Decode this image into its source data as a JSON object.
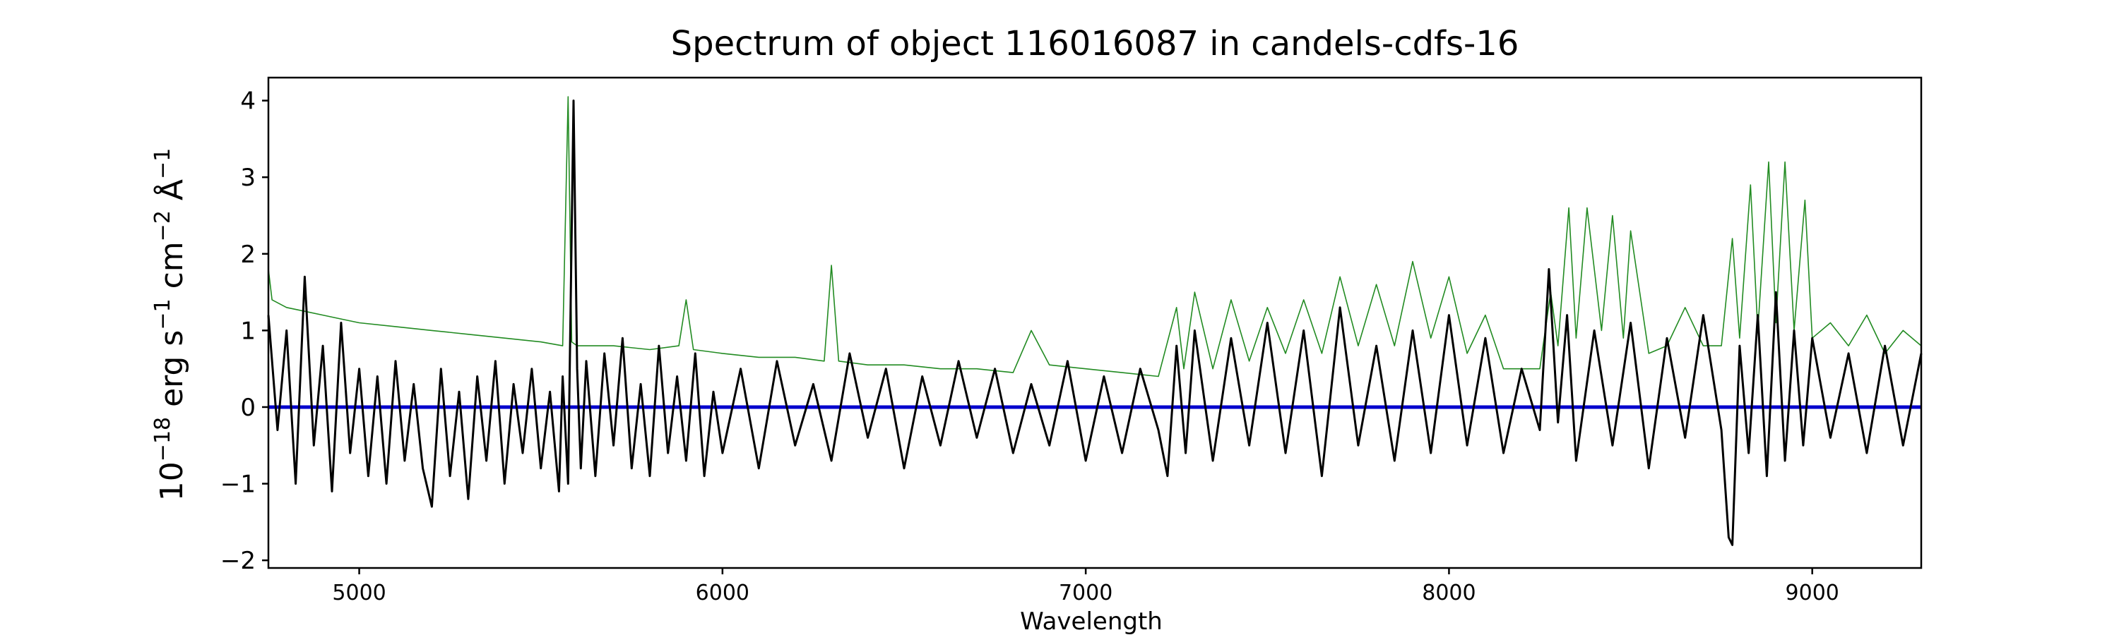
{
  "chart_data": {
    "type": "line",
    "title": "Spectrum of object 116016087 in candels-cdfs-16",
    "xlabel": "Wavelength",
    "ylabel_parts": [
      "10",
      "−18",
      " erg s",
      "−1",
      " cm",
      "−2",
      " Å",
      "−1"
    ],
    "xlim": [
      4750,
      9300
    ],
    "ylim": [
      -2.1,
      4.3
    ],
    "x_ticks": [
      5000,
      6000,
      7000,
      8000,
      9000
    ],
    "y_ticks": [
      -2,
      -1,
      0,
      1,
      2,
      3,
      4
    ],
    "grid": false,
    "colors": {
      "flux": "#000000",
      "model": "#228b22",
      "zero": "#0000cd"
    },
    "series": [
      {
        "role": "flux",
        "x": [
          4750,
          4775,
          4800,
          4825,
          4850,
          4875,
          4900,
          4925,
          4950,
          4975,
          5000,
          5025,
          5050,
          5075,
          5100,
          5125,
          5150,
          5175,
          5200,
          5225,
          5250,
          5275,
          5300,
          5325,
          5350,
          5375,
          5400,
          5425,
          5450,
          5475,
          5500,
          5525,
          5550,
          5560,
          5575,
          5590,
          5600,
          5610,
          5625,
          5650,
          5675,
          5700,
          5725,
          5750,
          5775,
          5800,
          5825,
          5850,
          5875,
          5900,
          5925,
          5950,
          5975,
          6000,
          6050,
          6100,
          6150,
          6200,
          6250,
          6300,
          6350,
          6400,
          6450,
          6500,
          6550,
          6600,
          6650,
          6700,
          6750,
          6800,
          6850,
          6900,
          6950,
          7000,
          7050,
          7100,
          7150,
          7200,
          7225,
          7250,
          7275,
          7300,
          7350,
          7400,
          7450,
          7500,
          7550,
          7600,
          7650,
          7700,
          7750,
          7800,
          7850,
          7900,
          7950,
          8000,
          8050,
          8100,
          8150,
          8200,
          8250,
          8275,
          8300,
          8325,
          8350,
          8400,
          8450,
          8500,
          8550,
          8600,
          8650,
          8700,
          8750,
          8770,
          8780,
          8800,
          8825,
          8850,
          8875,
          8900,
          8925,
          8950,
          8975,
          9000,
          9050,
          9100,
          9150,
          9200,
          9250,
          9300
        ],
        "y": [
          1.2,
          -0.3,
          1.0,
          -1.0,
          1.7,
          -0.5,
          0.8,
          -1.1,
          1.1,
          -0.6,
          0.5,
          -0.9,
          0.4,
          -1.0,
          0.6,
          -0.7,
          0.3,
          -0.8,
          -1.3,
          0.5,
          -0.9,
          0.2,
          -1.2,
          0.4,
          -0.7,
          0.6,
          -1.0,
          0.3,
          -0.6,
          0.5,
          -0.8,
          0.2,
          -1.1,
          0.4,
          -1.0,
          4.0,
          0.5,
          -0.8,
          0.6,
          -0.9,
          0.7,
          -0.5,
          0.9,
          -0.8,
          0.3,
          -0.9,
          0.8,
          -0.6,
          0.4,
          -0.7,
          0.7,
          -0.9,
          0.2,
          -0.6,
          0.5,
          -0.8,
          0.6,
          -0.5,
          0.3,
          -0.7,
          0.7,
          -0.4,
          0.5,
          -0.8,
          0.4,
          -0.5,
          0.6,
          -0.4,
          0.5,
          -0.6,
          0.3,
          -0.5,
          0.6,
          -0.7,
          0.4,
          -0.6,
          0.5,
          -0.3,
          -0.9,
          0.8,
          -0.6,
          1.0,
          -0.7,
          0.9,
          -0.5,
          1.1,
          -0.6,
          1.0,
          -0.9,
          1.3,
          -0.5,
          0.8,
          -0.7,
          1.0,
          -0.6,
          1.2,
          -0.5,
          0.9,
          -0.6,
          0.5,
          -0.3,
          1.8,
          -0.2,
          1.2,
          -0.7,
          1.0,
          -0.5,
          1.1,
          -0.8,
          0.9,
          -0.4,
          1.2,
          -0.3,
          -1.7,
          -1.8,
          0.8,
          -0.6,
          1.2,
          -0.9,
          1.5,
          -0.7,
          1.0,
          -0.5,
          0.9,
          -0.4,
          0.7,
          -0.6,
          0.8,
          -0.5,
          0.7
        ]
      },
      {
        "role": "model",
        "x": [
          4750,
          4760,
          4800,
          4850,
          4900,
          4950,
          5000,
          5100,
          5200,
          5300,
          5400,
          5500,
          5560,
          5575,
          5585,
          5600,
          5700,
          5800,
          5880,
          5900,
          5920,
          6000,
          6100,
          6200,
          6280,
          6300,
          6320,
          6400,
          6500,
          6600,
          6700,
          6800,
          6850,
          6900,
          7000,
          7100,
          7200,
          7250,
          7270,
          7300,
          7350,
          7400,
          7450,
          7500,
          7550,
          7600,
          7650,
          7700,
          7750,
          7800,
          7850,
          7900,
          7950,
          8000,
          8050,
          8100,
          8150,
          8200,
          8250,
          8280,
          8300,
          8330,
          8350,
          8380,
          8420,
          8450,
          8480,
          8500,
          8550,
          8600,
          8650,
          8700,
          8750,
          8780,
          8800,
          8830,
          8850,
          8880,
          8900,
          8925,
          8950,
          8980,
          9000,
          9050,
          9100,
          9150,
          9200,
          9250,
          9300
        ],
        "y": [
          1.8,
          1.4,
          1.3,
          1.25,
          1.2,
          1.15,
          1.1,
          1.05,
          1.0,
          0.95,
          0.9,
          0.85,
          0.8,
          4.05,
          0.85,
          0.8,
          0.8,
          0.75,
          0.8,
          1.4,
          0.75,
          0.7,
          0.65,
          0.65,
          0.6,
          1.85,
          0.6,
          0.55,
          0.55,
          0.5,
          0.5,
          0.45,
          1.0,
          0.55,
          0.5,
          0.45,
          0.4,
          1.3,
          0.5,
          1.5,
          0.5,
          1.4,
          0.6,
          1.3,
          0.7,
          1.4,
          0.7,
          1.7,
          0.8,
          1.6,
          0.8,
          1.9,
          0.9,
          1.7,
          0.7,
          1.2,
          0.5,
          0.5,
          0.5,
          1.5,
          0.8,
          2.6,
          0.9,
          2.6,
          1.0,
          2.5,
          0.9,
          2.3,
          0.7,
          0.8,
          1.3,
          0.8,
          0.8,
          2.2,
          0.9,
          2.9,
          1.0,
          3.2,
          1.1,
          3.2,
          1.0,
          2.7,
          0.9,
          1.1,
          0.8,
          1.2,
          0.7,
          1.0,
          0.8
        ]
      },
      {
        "role": "zero",
        "x": [
          4750,
          9300
        ],
        "y": [
          0,
          0
        ]
      }
    ]
  }
}
